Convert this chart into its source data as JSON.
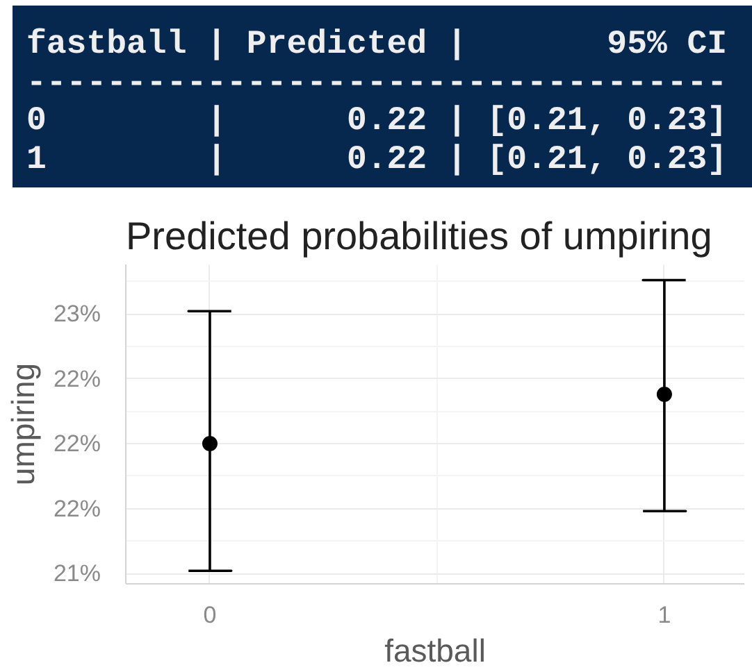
{
  "chart_data": {
    "type": "scatter",
    "title": "Predicted probabilities of umpiring",
    "xlabel": "fastball",
    "ylabel": "umpiring",
    "categories": [
      "0",
      "1"
    ],
    "values": [
      22.0,
      22.19
    ],
    "errors": [
      [
        21.51,
        22.51
      ],
      [
        21.74,
        22.63
      ]
    ],
    "color": "#000000",
    "marker": "circle",
    "ylim": [
      21.46,
      22.69
    ],
    "yticks": [
      {
        "value": 21.5,
        "label": "21%"
      },
      {
        "value": 21.75,
        "label": "22%"
      },
      {
        "value": 22,
        "label": "22%"
      },
      {
        "value": 22.25,
        "label": "22%"
      },
      {
        "value": 22.5,
        "label": "23%"
      }
    ],
    "grid": true,
    "annotations": [
      "fastball | Predicted |       95% CI",
      "-----------------------------------",
      "0        |      0.22 | [0.21, 0.23]",
      "1        |      0.22 | [0.21, 0.23]"
    ]
  }
}
